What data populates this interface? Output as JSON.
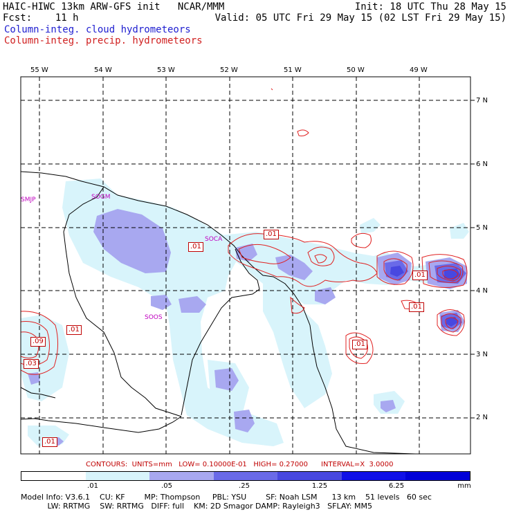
{
  "header": {
    "line1_left": "HAIC-HIWC 13km ARW-GFS init   NCAR/MMM",
    "line1_right": "Init: 18 UTC Thu 28 May 15",
    "line2_left": "Fcst:    11 h",
    "line2_right": "Valid: 05 UTC Fri 29 May 15 (02 LST Fri 29 May 15)",
    "field1": "Column-integ. cloud hydrometeors",
    "field2": "Column-integ. precip. hydrometeors"
  },
  "map": {
    "lon_labels": [
      "55 W",
      "54 W",
      "53 W",
      "52 W",
      "51 W",
      "50 W",
      "49 W"
    ],
    "lat_labels": [
      "7 N",
      "6 N",
      "5 N",
      "4 N",
      "3 N",
      "2 N"
    ],
    "stations": [
      "SMJP",
      "SOGM",
      "SOCA",
      "SOOS"
    ],
    "contour_labels": [
      ".01",
      ".01",
      ".01",
      ".01",
      ".01",
      ".09",
      ".03",
      ".01",
      ".01"
    ]
  },
  "colors": {
    "cloud_light": "#d8f4fb",
    "cloud_mid": "#a8a8f0",
    "cloud_dark": "#6a6ae8",
    "cloud_darker": "#4848e0",
    "precip_contour": "#e02020",
    "grid": "#000000"
  },
  "footer": {
    "contours_line": "CONTOURS:  UNITS=mm   LOW= 0.10000E-01   HIGH= 0.27000      INTERVAL=X  3.0000",
    "legend_ticks": [
      ".01",
      ".05",
      ".25",
      "1.25",
      "6.25",
      "mm"
    ],
    "legend_colors": [
      "#ffffff",
      "#d8f4fb",
      "#a8a8f0",
      "#6a6ae8",
      "#4848e0",
      "#1010e8",
      "#0000d8"
    ],
    "model_line1": "Model Info: V3.6.1    CU: KF        MP: Thompson     PBL: YSU        SF: Noah LSM      13 km    51 levels   60 sec",
    "model_line2": "           LW: RRTMG    SW: RRTMG   DIFF: full    KM: 2D Smagor DAMP: Rayleigh3   SFLAY: MM5"
  }
}
